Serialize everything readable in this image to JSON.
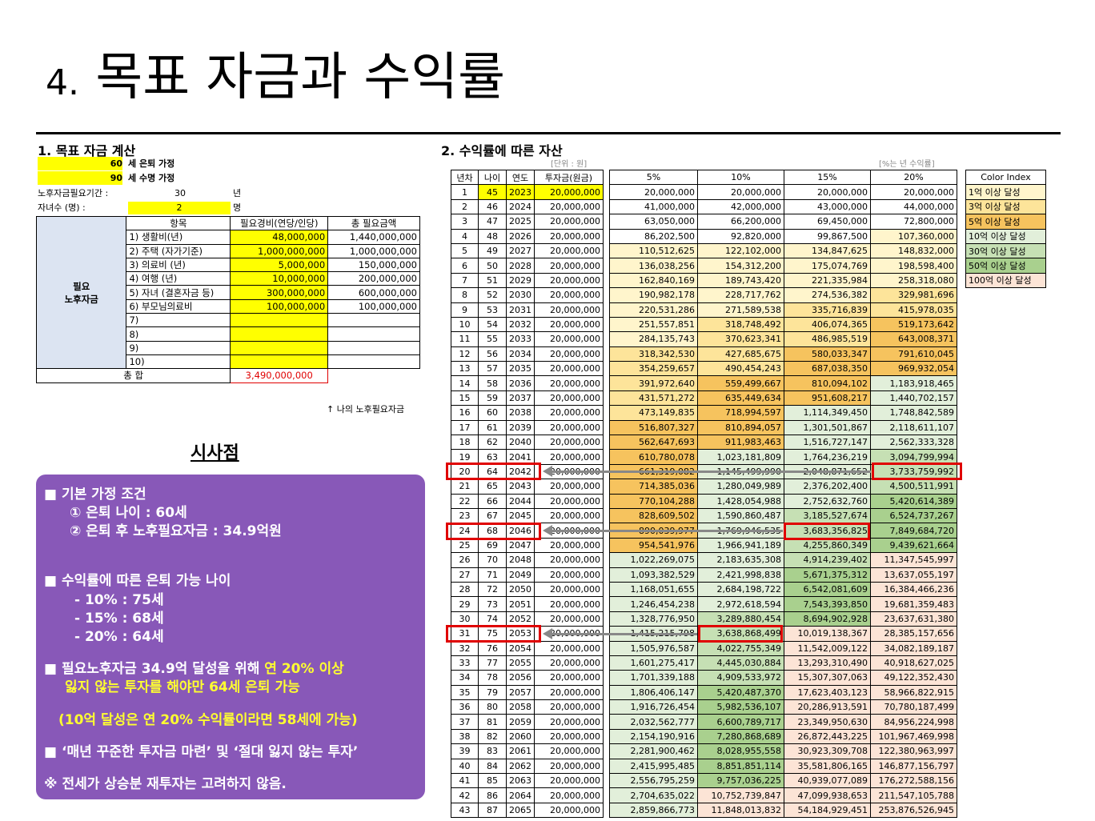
{
  "page": {
    "title_num": "4.",
    "title_text": "목표 자금과 수익률"
  },
  "section1": {
    "title": "1. 목표 자금 계산",
    "retire_age": "60",
    "retire_label": "세 은퇴 가정",
    "life_age": "90",
    "life_label": "세 수명 가정",
    "period_label": "노후자금필요기간 :",
    "period_value": "30",
    "period_unit": "년",
    "children_label": "자녀수 (명) :",
    "children_value": "2",
    "children_unit": "명",
    "table_headers": [
      "항목",
      "필요경비(연당/인당)",
      "총 필요금액"
    ],
    "category_label": [
      "필요",
      "노후자금"
    ],
    "rows": [
      {
        "item": "1) 생활비(년)",
        "cost": "48,000,000",
        "total": "1,440,000,000"
      },
      {
        "item": "2) 주택 (자가기준)",
        "cost": "1,000,000,000",
        "total": "1,000,000,000"
      },
      {
        "item": "3) 의료비 (년)",
        "cost": "5,000,000",
        "total": "150,000,000"
      },
      {
        "item": "4) 여행 (년)",
        "cost": "10,000,000",
        "total": "200,000,000"
      },
      {
        "item": "5) 자녀 (결혼자금 등)",
        "cost": "300,000,000",
        "total": "600,000,000"
      },
      {
        "item": "6) 부모님의료비",
        "cost": "100,000,000",
        "total": "100,000,000"
      },
      {
        "item": "7)",
        "cost": "",
        "total": ""
      },
      {
        "item": "8)",
        "cost": "",
        "total": ""
      },
      {
        "item": "9)",
        "cost": "",
        "total": ""
      },
      {
        "item": "10)",
        "cost": "",
        "total": ""
      }
    ],
    "total_label": "총 합",
    "total_value": "3,490,000,000",
    "total_note": "↑ 나의 노후필요자금"
  },
  "implications": {
    "title": "시사점",
    "lines": [
      "■ 기본 가정 조건",
      "① 은퇴 나이 : 60세",
      "② 은퇴 후 노후필요자금 : 34.9억원",
      "■ 수익률에 따른 은퇴 가능 나이",
      "- 10% : 75세",
      "- 15% : 68세",
      "- 20% : 64세",
      "■ 필요노후자금 34.9억 달성을 위해 ",
      "연 20% 이상",
      "잃지 않는 투자를 해야만 64세 은퇴 가능",
      "(10억 달성은 연 20% 수익률이라면 58세에 가능)",
      "■ ‘매년 꾸준한 투자금 마련’ 및 ‘절대 잃지 않는 투자’",
      "※ 전세가 상승분 재투자는 고려하지 않음."
    ]
  },
  "section2": {
    "title": "2. 수익률에 따른 자산",
    "unit_note": "[단위 : 원]",
    "rate_note": "[%는 년 수익률]",
    "headers": [
      "년차",
      "나이",
      "연도",
      "투자금(원금)",
      "5%",
      "10%",
      "15%",
      "20%"
    ],
    "rows": [
      [
        "1",
        "45",
        "2023",
        "20,000,000",
        "20,000,000",
        "20,000,000",
        "20,000,000",
        "20,000,000"
      ],
      [
        "2",
        "46",
        "2024",
        "20,000,000",
        "41,000,000",
        "42,000,000",
        "43,000,000",
        "44,000,000"
      ],
      [
        "3",
        "47",
        "2025",
        "20,000,000",
        "63,050,000",
        "66,200,000",
        "69,450,000",
        "72,800,000"
      ],
      [
        "4",
        "48",
        "2026",
        "20,000,000",
        "86,202,500",
        "92,820,000",
        "99,867,500",
        "107,360,000"
      ],
      [
        "5",
        "49",
        "2027",
        "20,000,000",
        "110,512,625",
        "122,102,000",
        "134,847,625",
        "148,832,000"
      ],
      [
        "6",
        "50",
        "2028",
        "20,000,000",
        "136,038,256",
        "154,312,200",
        "175,074,769",
        "198,598,400"
      ],
      [
        "7",
        "51",
        "2029",
        "20,000,000",
        "162,840,169",
        "189,743,420",
        "221,335,984",
        "258,318,080"
      ],
      [
        "8",
        "52",
        "2030",
        "20,000,000",
        "190,982,178",
        "228,717,762",
        "274,536,382",
        "329,981,696"
      ],
      [
        "9",
        "53",
        "2031",
        "20,000,000",
        "220,531,286",
        "271,589,538",
        "335,716,839",
        "415,978,035"
      ],
      [
        "10",
        "54",
        "2032",
        "20,000,000",
        "251,557,851",
        "318,748,492",
        "406,074,365",
        "519,173,642"
      ],
      [
        "11",
        "55",
        "2033",
        "20,000,000",
        "284,135,743",
        "370,623,341",
        "486,985,519",
        "643,008,371"
      ],
      [
        "12",
        "56",
        "2034",
        "20,000,000",
        "318,342,530",
        "427,685,675",
        "580,033,347",
        "791,610,045"
      ],
      [
        "13",
        "57",
        "2035",
        "20,000,000",
        "354,259,657",
        "490,454,243",
        "687,038,350",
        "969,932,054"
      ],
      [
        "14",
        "58",
        "2036",
        "20,000,000",
        "391,972,640",
        "559,499,667",
        "810,094,102",
        "1,183,918,465"
      ],
      [
        "15",
        "59",
        "2037",
        "20,000,000",
        "431,571,272",
        "635,449,634",
        "951,608,217",
        "1,440,702,157"
      ],
      [
        "16",
        "60",
        "2038",
        "20,000,000",
        "473,149,835",
        "718,994,597",
        "1,114,349,450",
        "1,748,842,589"
      ],
      [
        "17",
        "61",
        "2039",
        "20,000,000",
        "516,807,327",
        "810,894,057",
        "1,301,501,867",
        "2,118,611,107"
      ],
      [
        "18",
        "62",
        "2040",
        "20,000,000",
        "562,647,693",
        "911,983,463",
        "1,516,727,147",
        "2,562,333,328"
      ],
      [
        "19",
        "63",
        "2041",
        "20,000,000",
        "610,780,078",
        "1,023,181,809",
        "1,764,236,219",
        "3,094,799,994"
      ],
      [
        "20",
        "64",
        "2042",
        "20,000,000",
        "661,319,082",
        "1,145,499,990",
        "2,048,871,652",
        "3,733,759,992"
      ],
      [
        "21",
        "65",
        "2043",
        "20,000,000",
        "714,385,036",
        "1,280,049,989",
        "2,376,202,400",
        "4,500,511,991"
      ],
      [
        "22",
        "66",
        "2044",
        "20,000,000",
        "770,104,288",
        "1,428,054,988",
        "2,752,632,760",
        "5,420,614,389"
      ],
      [
        "23",
        "67",
        "2045",
        "20,000,000",
        "828,609,502",
        "1,590,860,487",
        "3,185,527,674",
        "6,524,737,267"
      ],
      [
        "24",
        "68",
        "2046",
        "20,000,000",
        "890,039,977",
        "1,769,946,535",
        "3,683,356,825",
        "7,849,684,720"
      ],
      [
        "25",
        "69",
        "2047",
        "20,000,000",
        "954,541,976",
        "1,966,941,189",
        "4,255,860,349",
        "9,439,621,664"
      ],
      [
        "26",
        "70",
        "2048",
        "20,000,000",
        "1,022,269,075",
        "2,183,635,308",
        "4,914,239,402",
        "11,347,545,997"
      ],
      [
        "27",
        "71",
        "2049",
        "20,000,000",
        "1,093,382,529",
        "2,421,998,838",
        "5,671,375,312",
        "13,637,055,197"
      ],
      [
        "28",
        "72",
        "2050",
        "20,000,000",
        "1,168,051,655",
        "2,684,198,722",
        "6,542,081,609",
        "16,384,466,236"
      ],
      [
        "29",
        "73",
        "2051",
        "20,000,000",
        "1,246,454,238",
        "2,972,618,594",
        "7,543,393,850",
        "19,681,359,483"
      ],
      [
        "30",
        "74",
        "2052",
        "20,000,000",
        "1,328,776,950",
        "3,289,880,454",
        "8,694,902,928",
        "23,637,631,380"
      ],
      [
        "31",
        "75",
        "2053",
        "20,000,000",
        "1,415,215,798",
        "3,638,868,499",
        "10,019,138,367",
        "28,385,157,656"
      ],
      [
        "32",
        "76",
        "2054",
        "20,000,000",
        "1,505,976,587",
        "4,022,755,349",
        "11,542,009,122",
        "34,082,189,187"
      ],
      [
        "33",
        "77",
        "2055",
        "20,000,000",
        "1,601,275,417",
        "4,445,030,884",
        "13,293,310,490",
        "40,918,627,025"
      ],
      [
        "34",
        "78",
        "2056",
        "20,000,000",
        "1,701,339,188",
        "4,909,533,972",
        "15,307,307,063",
        "49,122,352,430"
      ],
      [
        "35",
        "79",
        "2057",
        "20,000,000",
        "1,806,406,147",
        "5,420,487,370",
        "17,623,403,123",
        "58,966,822,915"
      ],
      [
        "36",
        "80",
        "2058",
        "20,000,000",
        "1,916,726,454",
        "5,982,536,107",
        "20,286,913,591",
        "70,780,187,499"
      ],
      [
        "37",
        "81",
        "2059",
        "20,000,000",
        "2,032,562,777",
        "6,600,789,717",
        "23,349,950,630",
        "84,956,224,998"
      ],
      [
        "38",
        "82",
        "2060",
        "20,000,000",
        "2,154,190,916",
        "7,280,868,689",
        "26,872,443,225",
        "101,967,469,998"
      ],
      [
        "39",
        "83",
        "2061",
        "20,000,000",
        "2,281,900,462",
        "8,028,955,558",
        "30,923,309,708",
        "122,380,963,997"
      ],
      [
        "40",
        "84",
        "2062",
        "20,000,000",
        "2,415,995,485",
        "8,851,851,114",
        "35,581,806,165",
        "146,877,156,797"
      ],
      [
        "41",
        "85",
        "2063",
        "20,000,000",
        "2,556,795,259",
        "9,757,036,225",
        "40,939,077,089",
        "176,272,588,156"
      ],
      [
        "42",
        "86",
        "2064",
        "20,000,000",
        "2,704,635,022",
        "10,752,739,847",
        "47,099,938,653",
        "211,547,105,788"
      ],
      [
        "43",
        "87",
        "2065",
        "20,000,000",
        "2,859,866,773",
        "11,848,013,832",
        "54,184,929,451",
        "253,876,526,945"
      ]
    ]
  },
  "legend": {
    "title": "Color Index",
    "items": [
      {
        "label": "1억 이상 달성",
        "color": "#fff5cc"
      },
      {
        "label": "3억 이상 달성",
        "color": "#fde49a"
      },
      {
        "label": "5억 이상 달성",
        "color": "#f6c35e"
      },
      {
        "label": "10억 이상 달성",
        "color": "#e2efda"
      },
      {
        "label": "30억 이상 달성",
        "color": "#c6e0b4"
      },
      {
        "label": "50억 이상 달성",
        "color": "#a9d08e"
      },
      {
        "label": "100억 이상 달성",
        "color": "#fce4d6"
      }
    ]
  }
}
